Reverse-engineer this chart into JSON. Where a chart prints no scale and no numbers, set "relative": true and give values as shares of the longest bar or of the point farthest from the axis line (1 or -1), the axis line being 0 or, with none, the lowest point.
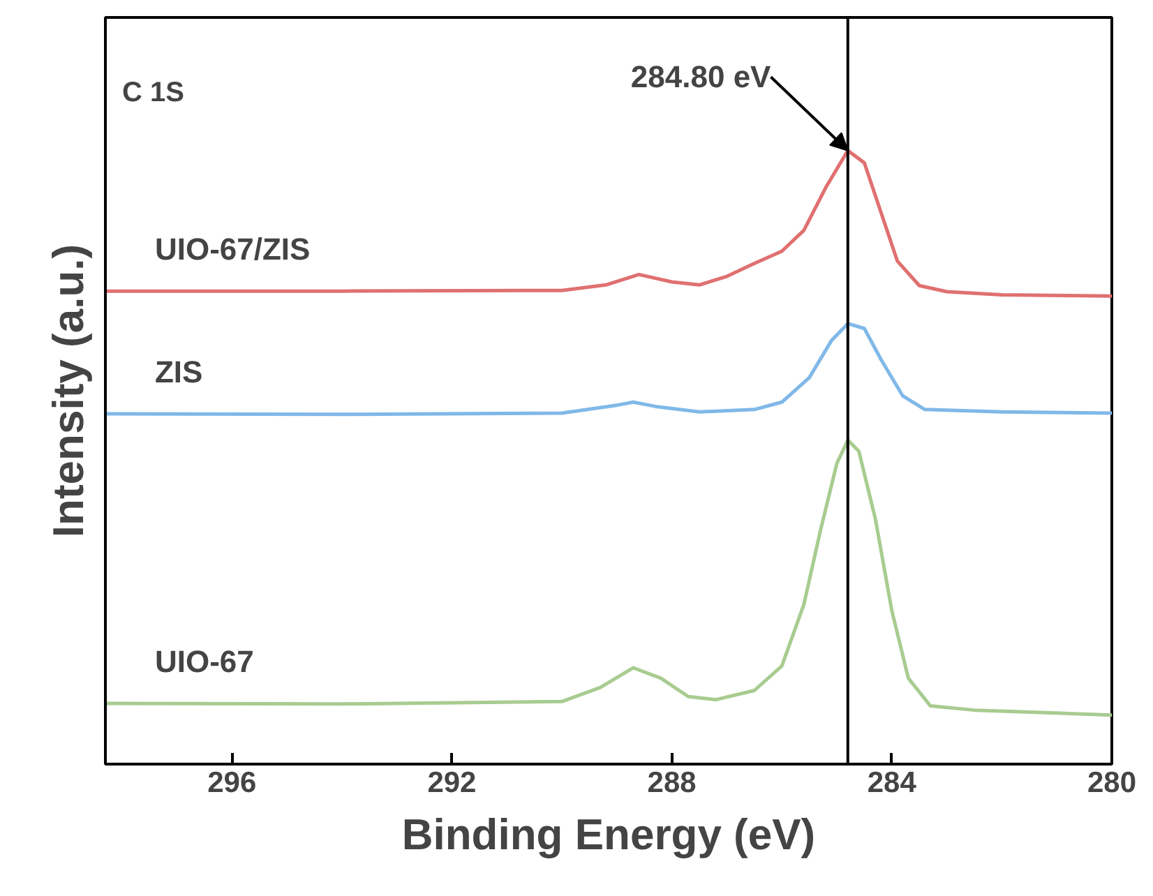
{
  "chart_data": {
    "type": "line",
    "relative": true,
    "xlabel": "Binding Energy (eV)",
    "ylabel": "Intensity (a.u.)",
    "xlim": [
      298.3,
      280
    ],
    "xticks": [
      296,
      292,
      288,
      284,
      280
    ],
    "grid": false,
    "marker": "none",
    "line_style": "solid",
    "annotations": [
      "C 1S",
      {
        "text": "284.80 eV",
        "x": 284.8,
        "y": 1.0
      }
    ],
    "ref_lines": [
      {
        "axis": "x",
        "value": 284.8,
        "color": "#000000"
      }
    ],
    "series": [
      {
        "name": "UIO-67/ZIS",
        "color": "#e07070",
        "x": [
          298.3,
          294,
          290,
          289.2,
          288.6,
          288,
          287.5,
          287,
          286.5,
          286,
          285.6,
          285.2,
          284.8,
          284.5,
          284.2,
          283.9,
          283.5,
          283,
          282,
          280
        ],
        "values": [
          0.771,
          0.771,
          0.772,
          0.781,
          0.798,
          0.786,
          0.781,
          0.795,
          0.816,
          0.836,
          0.87,
          0.94,
          1.0,
          0.98,
          0.9,
          0.82,
          0.78,
          0.77,
          0.765,
          0.763
        ]
      },
      {
        "name": "ZIS",
        "color": "#80b8e8",
        "x": [
          298.3,
          294,
          290,
          289,
          288.7,
          288.3,
          287.5,
          286.5,
          286,
          285.5,
          285.1,
          284.8,
          284.5,
          284.2,
          283.8,
          283.4,
          282,
          280
        ],
        "values": [
          0.571,
          0.57,
          0.572,
          0.585,
          0.59,
          0.583,
          0.574,
          0.578,
          0.59,
          0.63,
          0.69,
          0.718,
          0.71,
          0.66,
          0.6,
          0.578,
          0.574,
          0.572
        ]
      },
      {
        "name": "UIO-67",
        "color": "#a8cc90",
        "x": [
          298.3,
          294,
          290,
          289.3,
          288.7,
          288.2,
          287.7,
          287.2,
          286.5,
          286,
          285.6,
          285.3,
          285,
          284.8,
          284.6,
          284.3,
          284,
          283.7,
          283.3,
          282.5,
          280
        ],
        "values": [
          0.099,
          0.098,
          0.102,
          0.125,
          0.157,
          0.14,
          0.11,
          0.105,
          0.12,
          0.16,
          0.26,
          0.38,
          0.49,
          0.528,
          0.51,
          0.4,
          0.25,
          0.14,
          0.095,
          0.088,
          0.08
        ]
      }
    ]
  }
}
